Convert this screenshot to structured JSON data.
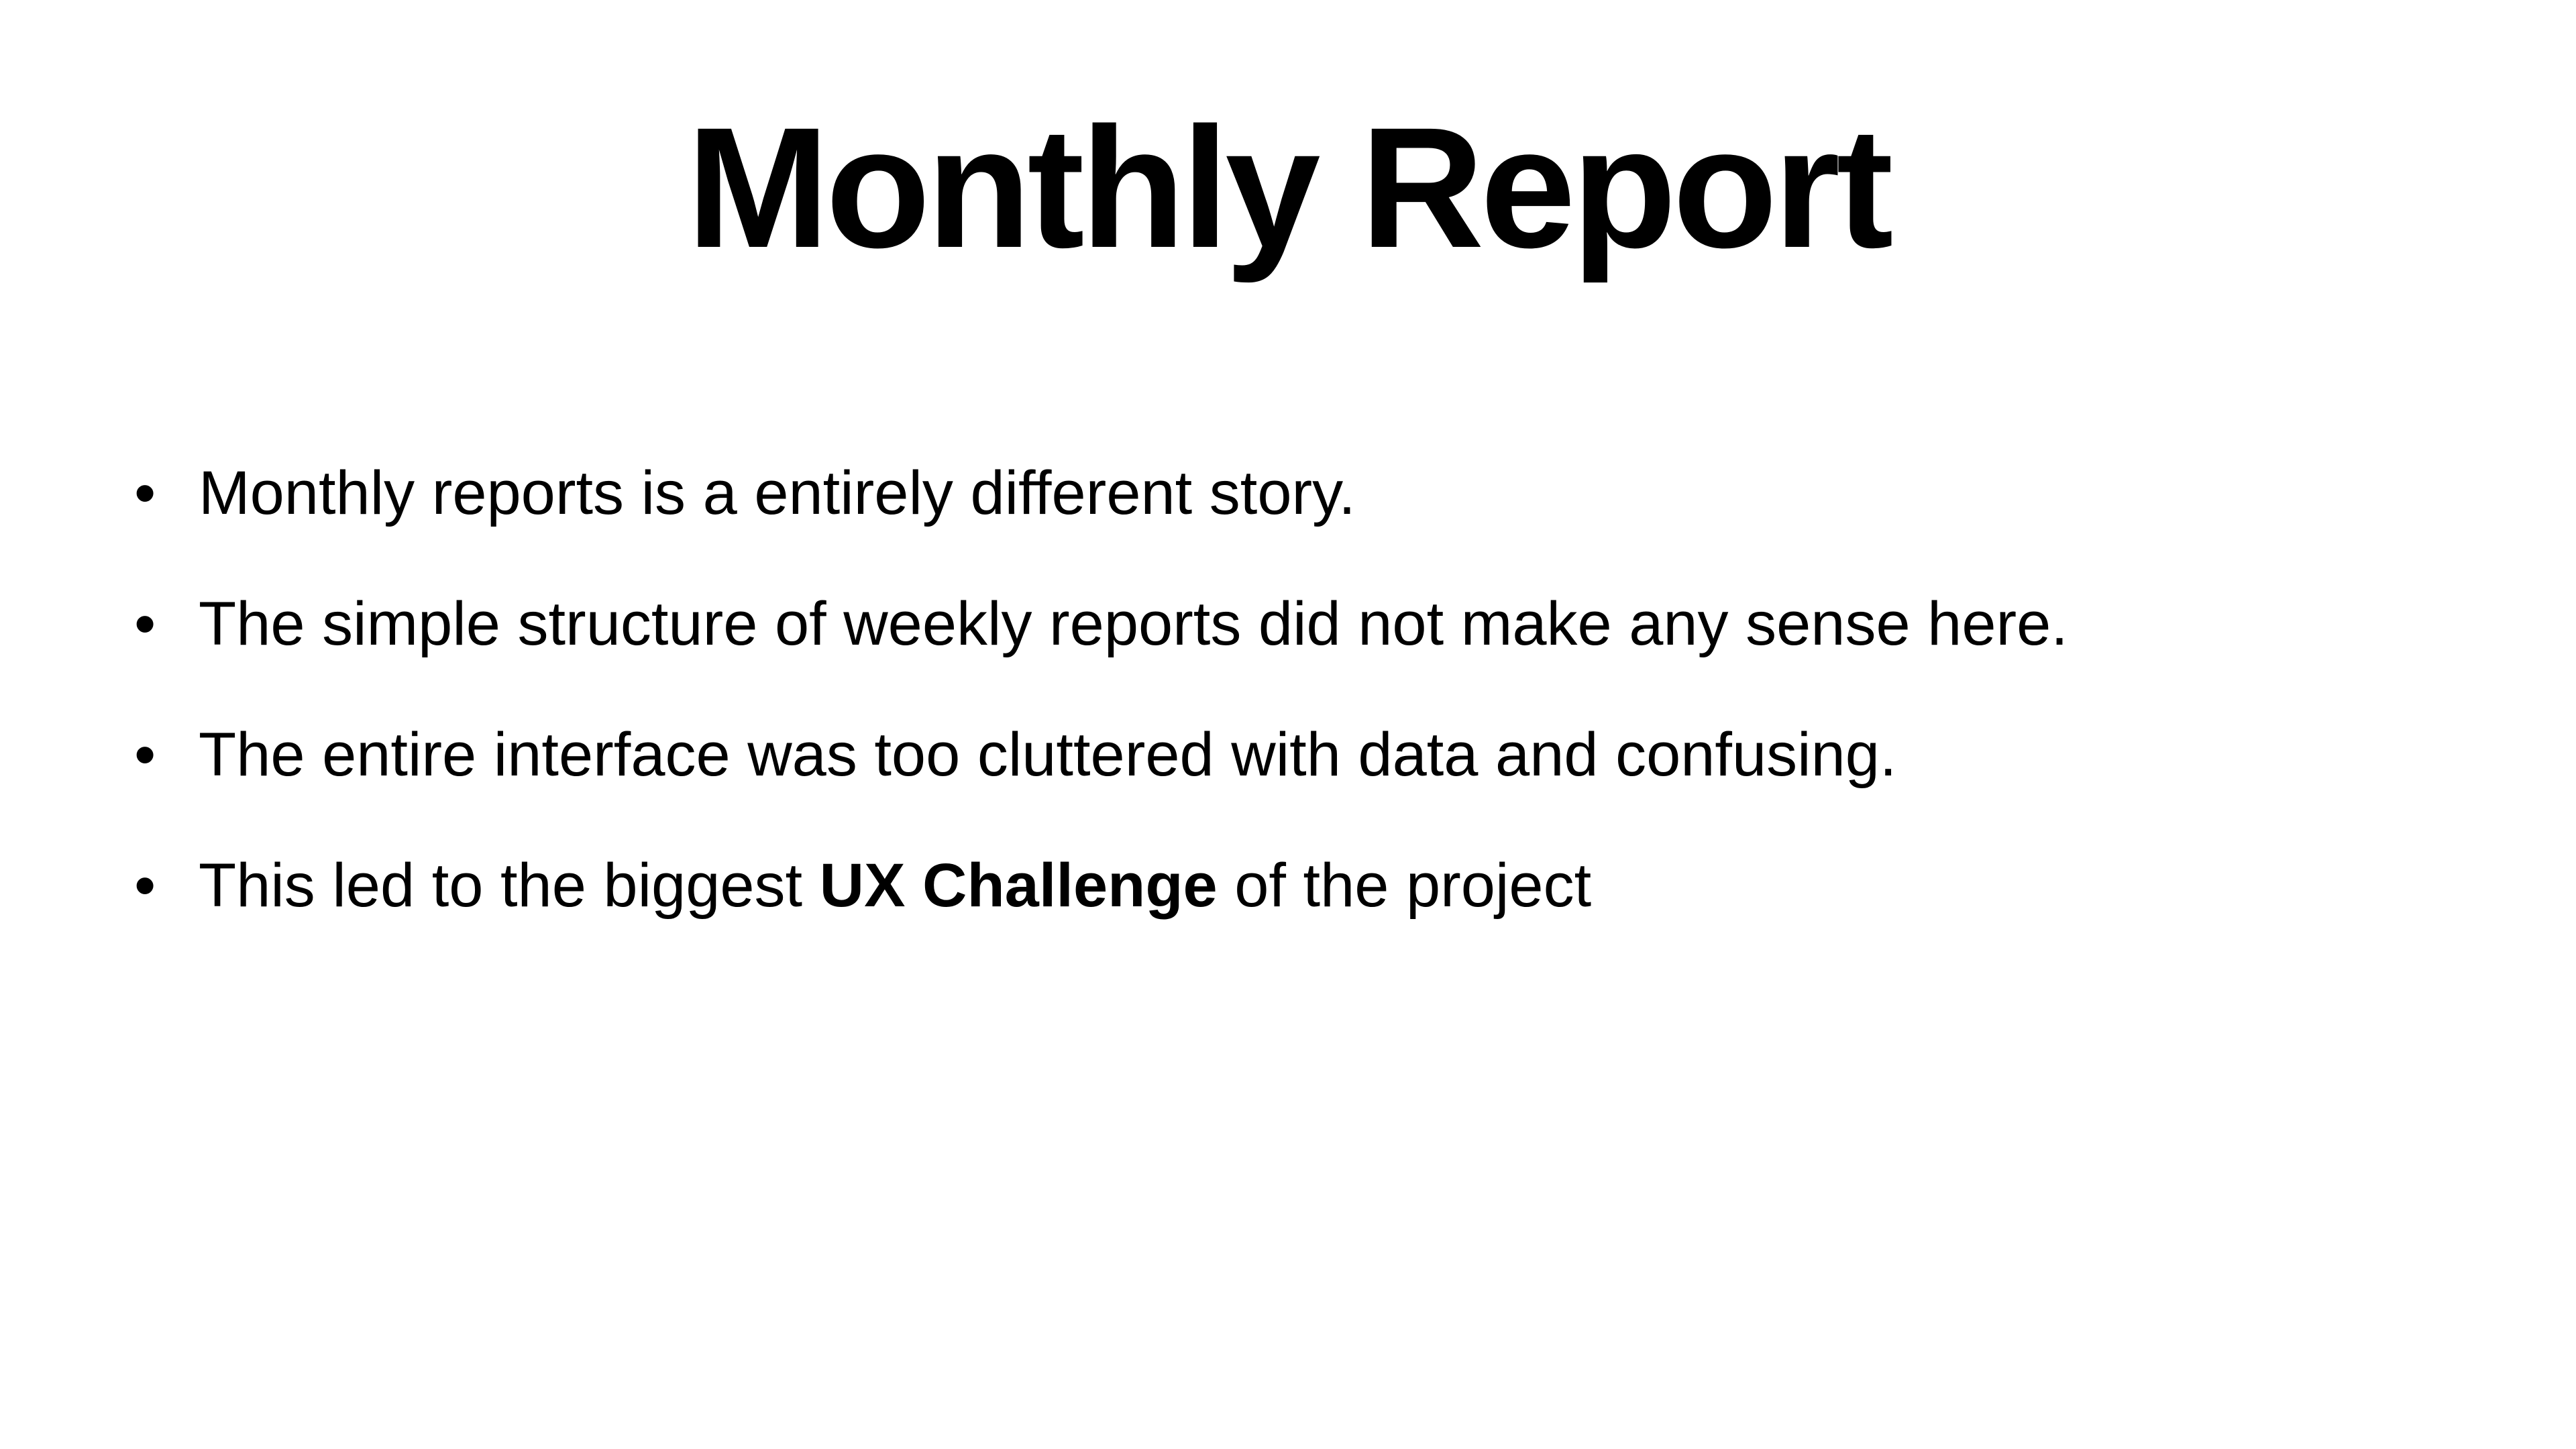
{
  "slide": {
    "title": "Monthly Report",
    "bullets": [
      {
        "text": "Monthly reports is a entirely different story."
      },
      {
        "text": "The simple structure of weekly reports did not make any sense here."
      },
      {
        "text": "The entire interface was too cluttered with data and confusing."
      },
      {
        "before": "This led to the biggest ",
        "bold": "UX Challenge",
        "after": " of the project"
      }
    ],
    "bullet_symbol": "•",
    "colors": {
      "background": "#ffffff",
      "text": "#000000"
    }
  }
}
